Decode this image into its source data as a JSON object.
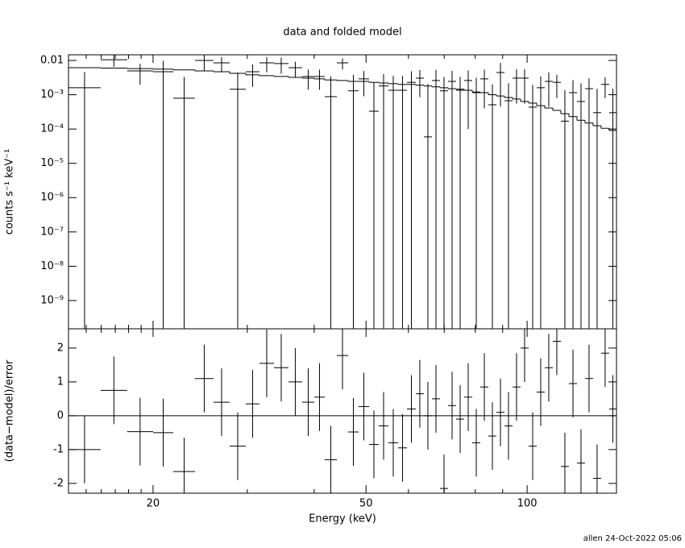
{
  "chart_data": {
    "type": "spectrum",
    "title": "data and folded model",
    "xlabel": "Energy (keV)",
    "ylabel": "counts s⁻¹ keV⁻¹",
    "residual_ylabel": "(data−model)/error",
    "footer": "allen 24-Oct-2022 05:06",
    "log_x": true,
    "log_y": true,
    "xlim": [
      13.9,
      146.89
    ],
    "xticks": [
      20,
      50,
      100
    ],
    "xminorticks": [
      15,
      16,
      17,
      18,
      19,
      30,
      40,
      60,
      70,
      80,
      90
    ],
    "ylim": [
      1.5e-10,
      0.0146
    ],
    "yticks": [
      {
        "value": 0.01,
        "label": "0.01"
      },
      {
        "value": 0.001,
        "label": "10⁻³"
      },
      {
        "value": 0.0001,
        "label": "10⁻⁴"
      },
      {
        "value": 1e-05,
        "label": "10⁻⁵"
      },
      {
        "value": 1e-06,
        "label": "10⁻⁶"
      },
      {
        "value": 1e-07,
        "label": "10⁻⁷"
      },
      {
        "value": 1e-08,
        "label": "10⁻⁸"
      },
      {
        "value": 1e-09,
        "label": "10⁻⁹"
      }
    ],
    "residual_ylim": [
      -2.29,
      2.57
    ],
    "residual_yticks": [
      -2,
      -1,
      0,
      1,
      2
    ],
    "bins": [
      13.9,
      15.96,
      17.89,
      20,
      21.82,
      23.95,
      25.94,
      27.81,
      29.8,
      31.61,
      33.65,
      35.81,
      37.98,
      40.02,
      41.86,
      44.1,
      46.3,
      48.42,
      50.66,
      52.81,
      55.06,
      57.39,
      59.63,
      61.94,
      64.12,
      66.39,
      68.73,
      71.16,
      73.68,
      76.27,
      78.97,
      81.75,
      84.64,
      87.63,
      90.71,
      93.91,
      97.21,
      100.65,
      104.21,
      107.87,
      111.68,
      115.61,
      119.7,
      123.93,
      128.28,
      132.81,
      137.47,
      142.34,
      146.89
    ],
    "data": {
      "color": "#000000",
      "values": [
        0.0016,
        0.0105,
        0.00495,
        0.0047,
        0.00079,
        0.01,
        0.0085,
        0.00145,
        0.0047,
        0.0085,
        0.0081,
        0.00615,
        0.0034,
        0.0034,
        0.00088,
        0.0085,
        0.0013,
        0.0029,
        0.00033,
        0.0018,
        0.00135,
        0.00135,
        0.0023,
        0.00305,
        5.9e-05,
        0.0026,
        0.0013,
        0.00245,
        0.00135,
        0.0026,
        0.00115,
        0.0029,
        0.00051,
        0.00445,
        0.00067,
        0.00305,
        0.00305,
        0.000435,
        0.0016,
        0.00245,
        0.0023,
        0.00017,
        0.00115,
        0.000635,
        0.0015,
        0.0003,
        0.002,
        0.0003
      ],
      "yerr": [
        0.003,
        0.004,
        0.003,
        0.005,
        0.0025,
        0.005,
        0.004,
        0.003,
        0.003,
        0.004,
        0.004,
        0.003,
        0.002,
        0.002,
        0.0025,
        0.003,
        0.0025,
        0.002,
        0.002,
        0.0022,
        0.0022,
        0.0022,
        0.0025,
        0.0022,
        0.002,
        0.0027,
        0.002,
        0.0025,
        0.002,
        0.0025,
        0.002,
        0.0025,
        0.0015,
        0.004,
        0.0015,
        0.0025,
        0.0025,
        0.0015,
        0.0018,
        0.002,
        0.0015,
        0.0012,
        0.0015,
        0.0015,
        0.0015,
        0.0012,
        0.0012,
        0.0012
      ]
    },
    "model": {
      "color": "#000000",
      "values": [
        0.00615,
        0.006,
        0.0058,
        0.0056,
        0.0053,
        0.00495,
        0.0047,
        0.0042,
        0.0038,
        0.0036,
        0.0034,
        0.0032,
        0.00305,
        0.0029,
        0.0027,
        0.0026,
        0.00245,
        0.00245,
        0.0023,
        0.0022,
        0.0021,
        0.002,
        0.002,
        0.0019,
        0.0018,
        0.0017,
        0.0016,
        0.0015,
        0.00145,
        0.00135,
        0.0012,
        0.00115,
        0.001,
        0.00092,
        0.00083,
        0.00075,
        0.000635,
        0.00057,
        0.00048,
        0.00041,
        0.00035,
        0.00028,
        0.00023,
        0.00018,
        0.00015,
        0.000125,
        0.000105,
        9.1e-05
      ]
    },
    "residuals": {
      "color": "#000000",
      "values": [
        -1.0,
        0.75,
        -0.47,
        -0.5,
        -1.65,
        1.1,
        0.4,
        -0.9,
        0.35,
        1.55,
        1.42,
        1.0,
        0.4,
        0.55,
        -1.3,
        1.78,
        -0.48,
        0.27,
        -0.85,
        -0.3,
        -0.8,
        -0.95,
        0.2,
        0.65,
        0.0,
        0.5,
        -2.15,
        0.3,
        -0.1,
        0.55,
        -0.8,
        0.85,
        -0.6,
        0.1,
        -0.3,
        0.85,
        2.0,
        -0.9,
        0.7,
        1.42,
        2.2,
        -1.5,
        0.95,
        -1.4,
        1.1,
        -1.85,
        1.85,
        0.2
      ],
      "yerr": [
        1,
        1,
        1,
        1,
        1,
        1,
        1,
        1,
        1,
        1,
        1,
        1,
        1,
        1,
        1,
        1,
        1,
        1,
        1,
        1,
        1,
        1,
        1,
        1,
        1,
        1,
        1,
        1,
        1,
        1,
        1,
        1,
        1,
        1,
        1,
        1,
        1,
        1,
        1,
        1,
        1,
        1,
        1,
        1,
        1,
        1,
        1,
        1
      ]
    },
    "reference_line": {
      "value": 0,
      "color": "#00e000"
    }
  }
}
